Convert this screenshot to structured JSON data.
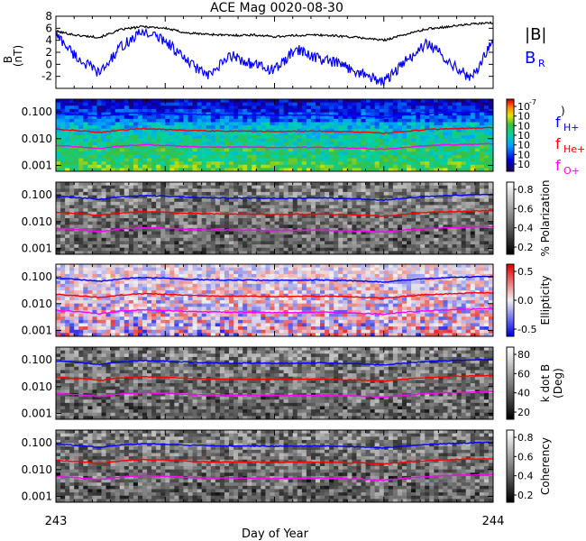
{
  "chart_data": [
    {
      "type": "line",
      "title": "ACE Mag 0020-08-30",
      "ylabel": "B",
      "yunit": "(nT)",
      "ylim": [
        -4,
        8
      ],
      "yticks": [
        "8",
        "6",
        "4",
        "2",
        "0",
        "-2"
      ],
      "legend": [
        "|B|",
        "B",
        "R"
      ],
      "series": [
        {
          "name": "|B|",
          "color": "#000000",
          "x": [
            243.0,
            243.05,
            243.1,
            243.15,
            243.2,
            243.25,
            243.3,
            243.35,
            243.4,
            243.45,
            243.5,
            243.55,
            243.6,
            243.65,
            243.7,
            243.75,
            243.8,
            243.85,
            243.9,
            243.95,
            244.0
          ],
          "y": [
            5.5,
            4.8,
            4.5,
            5.8,
            6.3,
            6.0,
            5.2,
            5.0,
            4.8,
            4.9,
            4.6,
            4.8,
            4.9,
            4.7,
            4.4,
            4.0,
            5.0,
            5.9,
            6.3,
            6.7,
            6.9
          ]
        },
        {
          "name": "B R",
          "color": "#0000ff",
          "x": [
            243.0,
            243.05,
            243.1,
            243.15,
            243.2,
            243.25,
            243.3,
            243.35,
            243.4,
            243.45,
            243.5,
            243.55,
            243.6,
            243.65,
            243.7,
            243.75,
            243.8,
            243.85,
            243.9,
            243.95,
            244.0
          ],
          "y": [
            5.0,
            1.0,
            -1.5,
            3.0,
            5.5,
            4.0,
            0.5,
            -2.0,
            1.5,
            0.0,
            -1.0,
            2.5,
            1.0,
            0.0,
            -1.5,
            -3.0,
            0.5,
            3.5,
            0.5,
            -2.5,
            4.0
          ]
        }
      ]
    },
    {
      "type": "heatmap",
      "cmap": "rainbow",
      "yticks": [
        "0.100",
        "0.010",
        "0.001"
      ],
      "colorbar_ticks": [
        "10",
        "10",
        "10",
        "10",
        "10",
        "10",
        "10"
      ],
      "colorbar_exps": [
        "-7",
        "",
        "",
        "",
        "",
        "",
        ""
      ],
      "colorbar_title": ")",
      "legend": [
        {
          "base": "f",
          "sub": "H+",
          "color": "#0000ff"
        },
        {
          "base": "f",
          "sub": "He+",
          "color": "#ff0000"
        },
        {
          "base": "f",
          "sub": "O+",
          "color": "#ff00ff"
        }
      ]
    },
    {
      "type": "heatmap",
      "cmap": "gray",
      "yticks": [
        "0.100",
        "0.010",
        "0.001"
      ],
      "colorbar_label": "% Polarization",
      "colorbar_ticks": [
        "0.8",
        "0.6",
        "0.4",
        "0.2"
      ]
    },
    {
      "type": "heatmap",
      "cmap": "bwr",
      "yticks": [
        "0.100",
        "0.010",
        "0.001"
      ],
      "colorbar_label": "Ellipticity",
      "colorbar_ticks": [
        "0.5",
        "0.0",
        "-0.5"
      ]
    },
    {
      "type": "heatmap",
      "cmap": "gray",
      "yticks": [
        "0.100",
        "0.010",
        "0.001"
      ],
      "colorbar_label": "k dot B",
      "colorbar_sublabel": "(Deg)",
      "colorbar_ticks": [
        "80",
        "60",
        "40",
        "20"
      ]
    },
    {
      "type": "heatmap",
      "cmap": "gray",
      "yticks": [
        "0.100",
        "0.010",
        "0.001"
      ],
      "colorbar_label": "Coherency",
      "colorbar_ticks": [
        "0.8",
        "0.6",
        "0.4",
        "0.2"
      ]
    }
  ],
  "xaxis": {
    "label": "Day of Year",
    "tick_labels": [
      "243",
      "244"
    ],
    "xlim": [
      243,
      244
    ]
  },
  "gyro_lines": {
    "x": [
      243.0,
      243.05,
      243.1,
      243.15,
      243.2,
      243.25,
      243.3,
      243.35,
      243.4,
      243.45,
      243.5,
      243.55,
      243.6,
      243.65,
      243.7,
      243.75,
      243.8,
      243.85,
      243.9,
      243.95,
      244.0
    ],
    "H+": [
      0.09,
      0.08,
      0.068,
      0.085,
      0.094,
      0.09,
      0.082,
      0.078,
      0.076,
      0.076,
      0.074,
      0.075,
      0.077,
      0.074,
      0.07,
      0.064,
      0.076,
      0.088,
      0.094,
      0.1,
      0.104
    ],
    "He+": [
      0.0225,
      0.02,
      0.017,
      0.021,
      0.0235,
      0.0225,
      0.0205,
      0.0195,
      0.019,
      0.019,
      0.0185,
      0.019,
      0.019,
      0.0185,
      0.0175,
      0.016,
      0.019,
      0.022,
      0.0235,
      0.025,
      0.026
    ],
    "O+": [
      0.0056,
      0.005,
      0.0042,
      0.0053,
      0.0059,
      0.0056,
      0.0051,
      0.0049,
      0.0048,
      0.0048,
      0.0046,
      0.0047,
      0.0048,
      0.0046,
      0.0044,
      0.004,
      0.0048,
      0.0055,
      0.0059,
      0.0062,
      0.0065
    ]
  }
}
